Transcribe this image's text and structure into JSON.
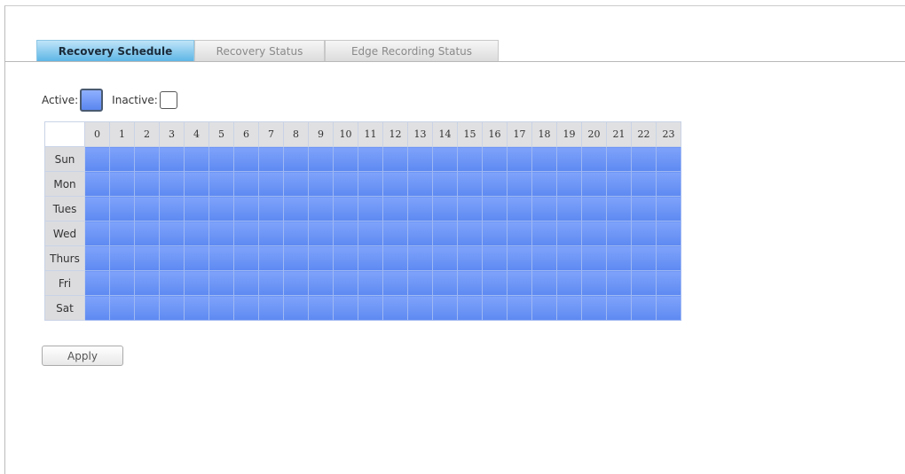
{
  "tabs": [
    {
      "label": "Recovery Schedule",
      "active": true
    },
    {
      "label": "Recovery Status",
      "active": false
    },
    {
      "label": "Edge Recording Status",
      "active": false
    }
  ],
  "legend": {
    "active_label": "Active:",
    "inactive_label": "Inactive:",
    "active_color": "#6b93f5",
    "inactive_color": "#ffffff"
  },
  "schedule": {
    "hours": [
      "0",
      "1",
      "2",
      "3",
      "4",
      "5",
      "6",
      "7",
      "8",
      "9",
      "10",
      "11",
      "12",
      "13",
      "14",
      "15",
      "16",
      "17",
      "18",
      "19",
      "20",
      "21",
      "22",
      "23"
    ],
    "days": [
      "Sun",
      "Mon",
      "Tues",
      "Wed",
      "Thurs",
      "Fri",
      "Sat"
    ],
    "all_active": true
  },
  "apply_label": "Apply"
}
